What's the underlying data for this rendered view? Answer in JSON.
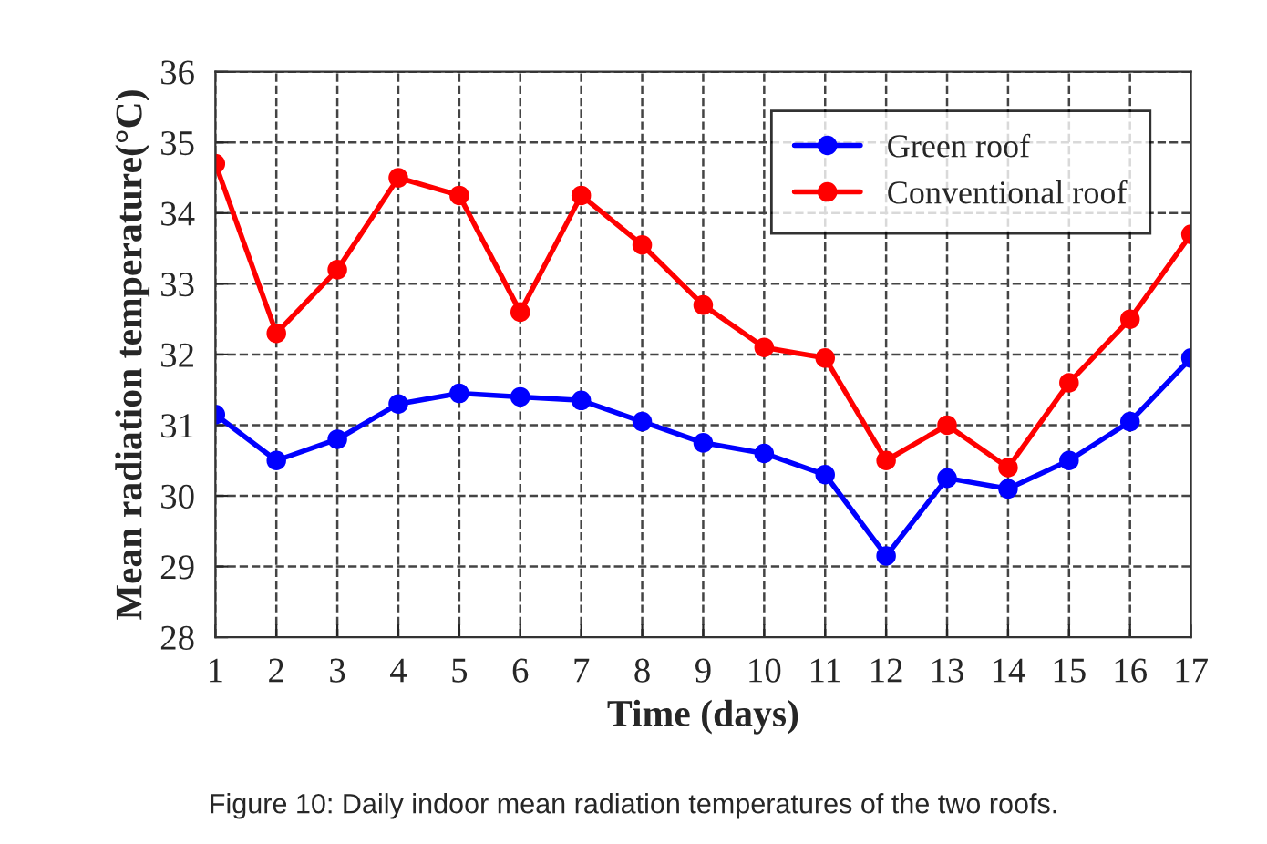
{
  "chart_data": {
    "type": "line",
    "xlabel": "Time (days)",
    "ylabel": "Mean radiation temperature(°C)",
    "x": [
      1,
      2,
      3,
      4,
      5,
      6,
      7,
      8,
      9,
      10,
      11,
      12,
      13,
      14,
      15,
      16,
      17
    ],
    "series": [
      {
        "name": "Green roof",
        "color": "#0000ff",
        "values": [
          31.15,
          30.5,
          30.8,
          31.3,
          31.45,
          31.4,
          31.35,
          31.05,
          30.75,
          30.6,
          30.3,
          29.15,
          30.25,
          30.1,
          30.5,
          31.05,
          31.95
        ]
      },
      {
        "name": "Conventional roof",
        "color": "#ff0000",
        "values": [
          34.7,
          32.3,
          33.2,
          34.5,
          34.25,
          32.6,
          34.25,
          33.55,
          32.7,
          32.1,
          31.95,
          30.5,
          31.0,
          30.4,
          31.6,
          32.5,
          33.7
        ]
      }
    ],
    "xlim": [
      1,
      17
    ],
    "xticks": [
      1,
      2,
      3,
      4,
      5,
      6,
      7,
      8,
      9,
      10,
      11,
      12,
      13,
      14,
      15,
      16,
      17
    ],
    "ylim": [
      28,
      36
    ],
    "yticks": [
      28,
      29,
      30,
      31,
      32,
      33,
      34,
      35,
      36
    ],
    "grid": true,
    "legend": "top right",
    "marker": "circle",
    "line_style": "solid",
    "annotations": [
      "Figure 10: Daily indoor mean radiation temperatures of the two roofs."
    ]
  }
}
